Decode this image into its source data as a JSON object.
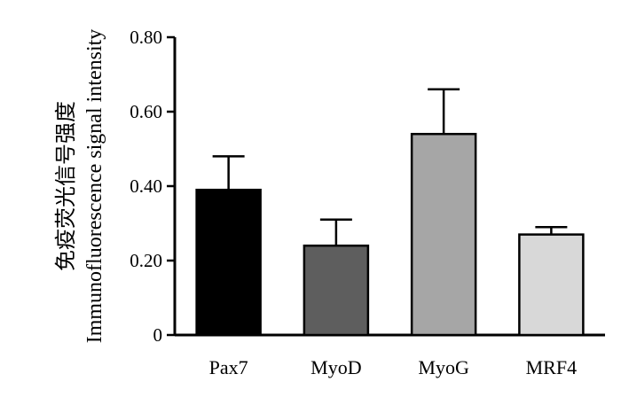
{
  "chart_data": {
    "type": "bar",
    "title": "",
    "xlabel": "",
    "ylabel_lines": [
      "免疫荧光信号强度",
      "Immunofluorescence signal intensity"
    ],
    "categories": [
      "Pax7",
      "MyoD",
      "MyoG",
      "MRF4"
    ],
    "values": [
      0.39,
      0.24,
      0.54,
      0.27
    ],
    "error_upper": [
      0.48,
      0.31,
      0.66,
      0.29
    ],
    "bar_colors": [
      "#000000",
      "#5e5e5e",
      "#a6a6a6",
      "#d8d8d8"
    ],
    "ylim": [
      0,
      0.8
    ],
    "yticks": [
      0,
      0.2,
      0.4,
      0.6,
      0.8
    ],
    "ytick_labels": [
      "0",
      "0.20",
      "0.40",
      "0.60",
      "0.80"
    ],
    "grid": false,
    "legend": "none"
  }
}
